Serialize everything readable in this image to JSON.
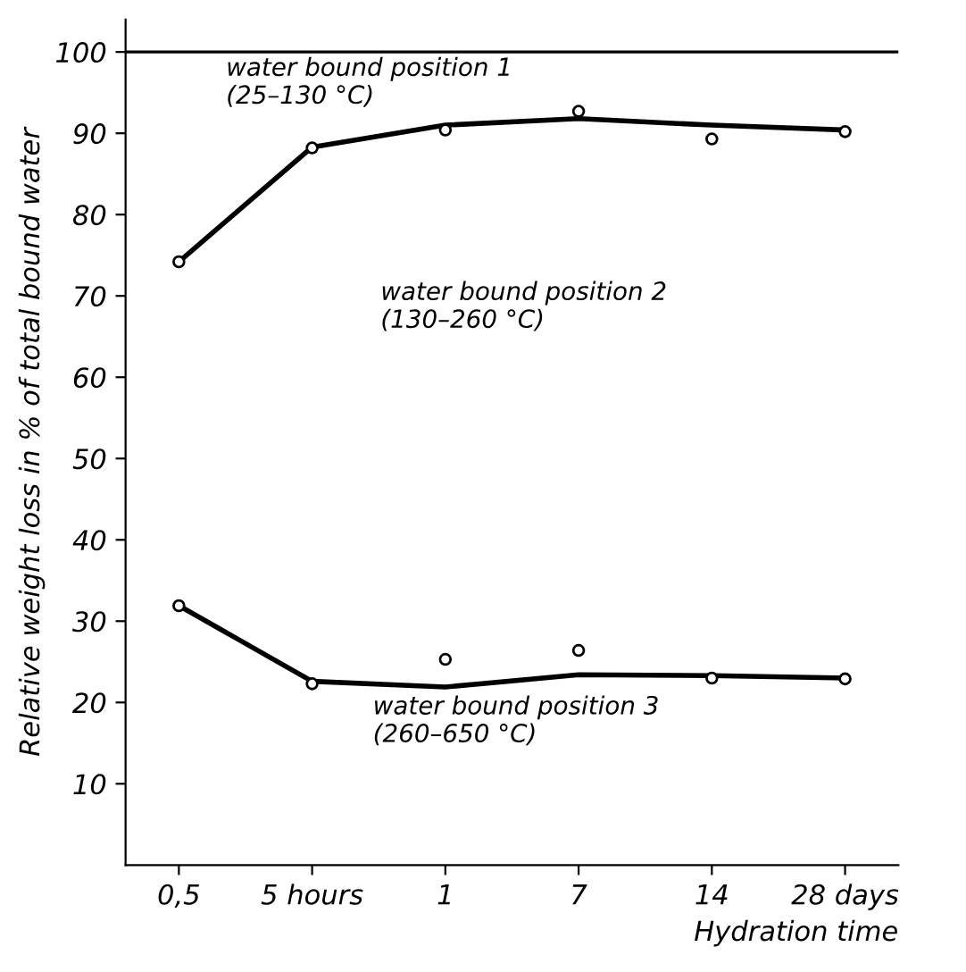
{
  "chart_data": {
    "type": "scatter",
    "ylabel": "Relative weight loss in % of total bound water",
    "xlabel": "Hydration time",
    "categories": [
      "0,5",
      "5 hours",
      "1",
      "7",
      "14",
      "28 days"
    ],
    "ylim": [
      0,
      104
    ],
    "yticks": [
      10,
      20,
      30,
      40,
      50,
      60,
      70,
      80,
      90,
      100
    ],
    "series": [
      {
        "color": "#000000",
        "marker": "circle",
        "values": [
          74.2,
          88.2,
          90.4,
          92.7,
          89.3,
          90.2
        ]
      },
      {
        "color": "#000000",
        "marker": "circle",
        "values": [
          31.9,
          22.3,
          25.3,
          26.4,
          23.0,
          22.9
        ]
      },
      {
        "type": "line",
        "color": "#000000",
        "values": [
          74.2,
          88.3,
          91.0,
          91.8,
          91.0,
          90.4
        ]
      },
      {
        "type": "line",
        "color": "#000000",
        "values": [
          31.9,
          22.6,
          21.9,
          23.4,
          23.3,
          23.0
        ]
      }
    ],
    "ref_lines": [
      {
        "axis": "y",
        "value": 100,
        "color": "#000000"
      }
    ],
    "annotations": [
      "water bound position 1\n(25–130 °C)",
      "water bound position 2\n(130–260 °C)",
      "water bound position 3\n(260–650 °C)"
    ],
    "grid": false,
    "legend": false
  }
}
